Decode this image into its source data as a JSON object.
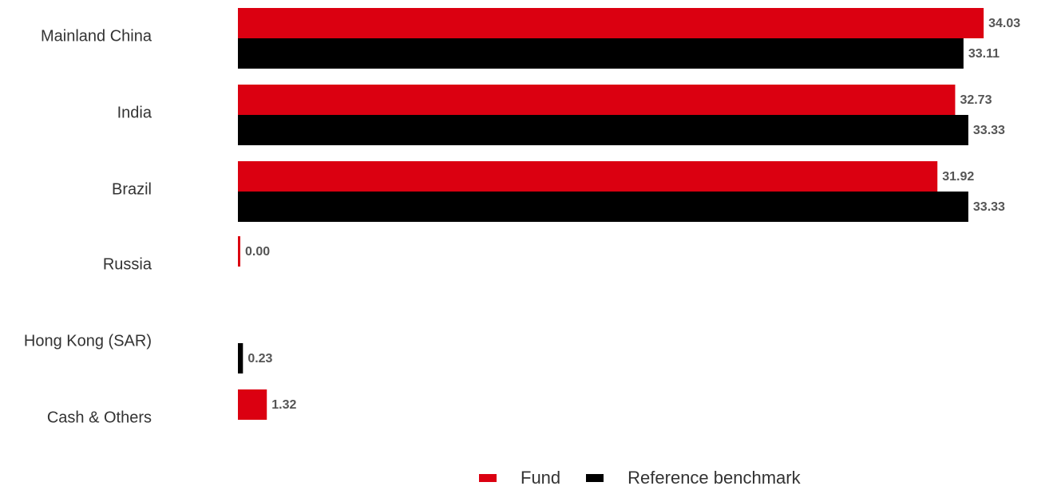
{
  "chart_data": {
    "type": "bar",
    "orientation": "horizontal",
    "categories": [
      "Mainland China",
      "India",
      "Brazil",
      "Russia",
      "Hong Kong (SAR)",
      "Cash & Others"
    ],
    "series": [
      {
        "name": "Fund",
        "color": "#db0011",
        "values": [
          34.03,
          32.73,
          31.92,
          0.0,
          null,
          1.32
        ],
        "labels": [
          "34.03",
          "32.73",
          "31.92",
          "0.00",
          "",
          "1.32"
        ]
      },
      {
        "name": "Reference benchmark",
        "color": "#000000",
        "values": [
          33.11,
          33.33,
          33.33,
          null,
          0.23,
          null
        ],
        "labels": [
          "33.11",
          "33.33",
          "33.33",
          "",
          "0.23",
          ""
        ]
      }
    ],
    "xlim": [
      0,
      35
    ],
    "grid": false,
    "legend": "bottom-center"
  }
}
